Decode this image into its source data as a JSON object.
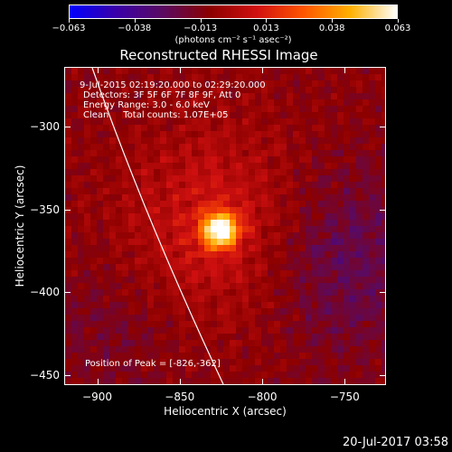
{
  "colorbar": {
    "labels": [
      "−0.063",
      "−0.038",
      "−0.013",
      "0.013",
      "0.038",
      "0.063"
    ],
    "units": "(photons cm⁻² s⁻¹ asec⁻²)",
    "colors": [
      "#0000ff",
      "#3a00a8",
      "#5a0a60",
      "#8b0000",
      "#d01010",
      "#ff5500",
      "#ffb000",
      "#ffffff"
    ]
  },
  "title": "Reconstructed RHESSI Image",
  "info": {
    "time_range": "9-Jul-2015 02:19:20.000 to 02:29:20.000",
    "detectors": "Detectors: 3F 5F 6F 7F 8F 9F, Att 0",
    "energy": "Energy Range: 3.0 - 6.0 keV",
    "method": "Clean     Total counts: 1.07E+05",
    "peak": "Position of Peak = [-826,-362]"
  },
  "axes": {
    "xlabel": "Heliocentric X (arcsec)",
    "ylabel": "Heliocentric Y (arcsec)",
    "xticks": [
      "−900",
      "−850",
      "−800",
      "−750"
    ],
    "yticks": [
      "−300",
      "−350",
      "−400",
      "−450"
    ],
    "xlim": [
      -920,
      -725
    ],
    "ylim": [
      -456,
      -264
    ],
    "x_values": [
      -900,
      -850,
      -800,
      -750
    ],
    "y_values": [
      -300,
      -350,
      -400,
      -450
    ]
  },
  "image": {
    "peak_x": -826,
    "peak_y": -362
  },
  "timestamp": "20-Jul-2017 03:58"
}
